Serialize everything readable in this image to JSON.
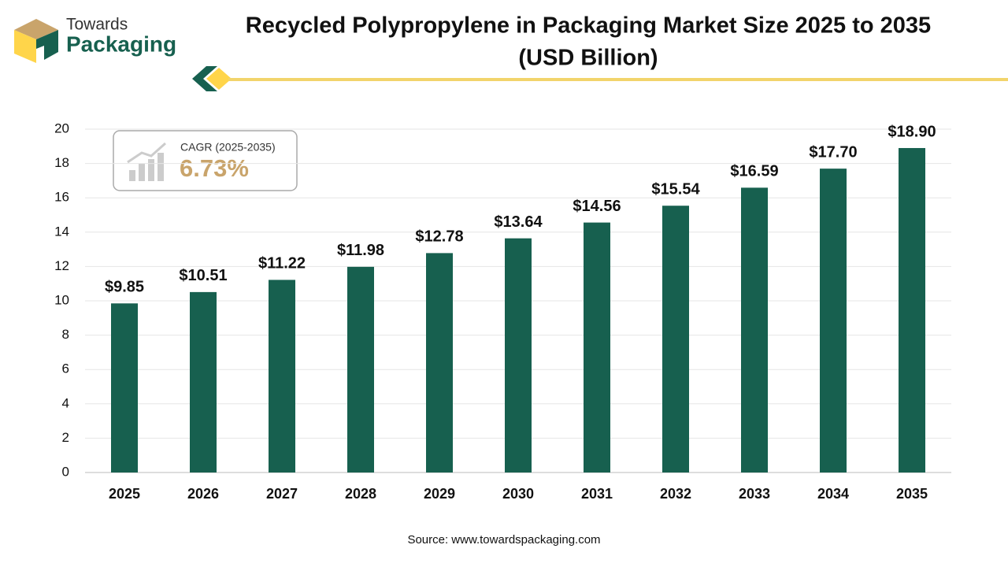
{
  "brand": {
    "line1": "Towards",
    "line2": "Packaging"
  },
  "cagr": {
    "label": "CAGR (2025-2035)",
    "value": "6.73%"
  },
  "source": "Source: www.towardspackaging.com",
  "chart_data": {
    "type": "bar",
    "title": "Recycled Polypropylene in Packaging Market Size 2025 to 2035",
    "subtitle": "(USD Billion)",
    "categories": [
      "2025",
      "2026",
      "2027",
      "2028",
      "2029",
      "2030",
      "2031",
      "2032",
      "2033",
      "2034",
      "2035"
    ],
    "values": [
      9.85,
      10.51,
      11.22,
      11.98,
      12.78,
      13.64,
      14.56,
      15.54,
      16.59,
      17.7,
      18.9
    ],
    "value_labels": [
      "$9.85",
      "$10.51",
      "$11.22",
      "$11.98",
      "$12.78",
      "$13.64",
      "$14.56",
      "$15.54",
      "$16.59",
      "$17.70",
      "$18.90"
    ],
    "color": "#17604f",
    "ylim": [
      0,
      20
    ],
    "yticks": [
      0,
      2,
      4,
      6,
      8,
      10,
      12,
      14,
      16,
      18,
      20
    ],
    "grid": true
  }
}
